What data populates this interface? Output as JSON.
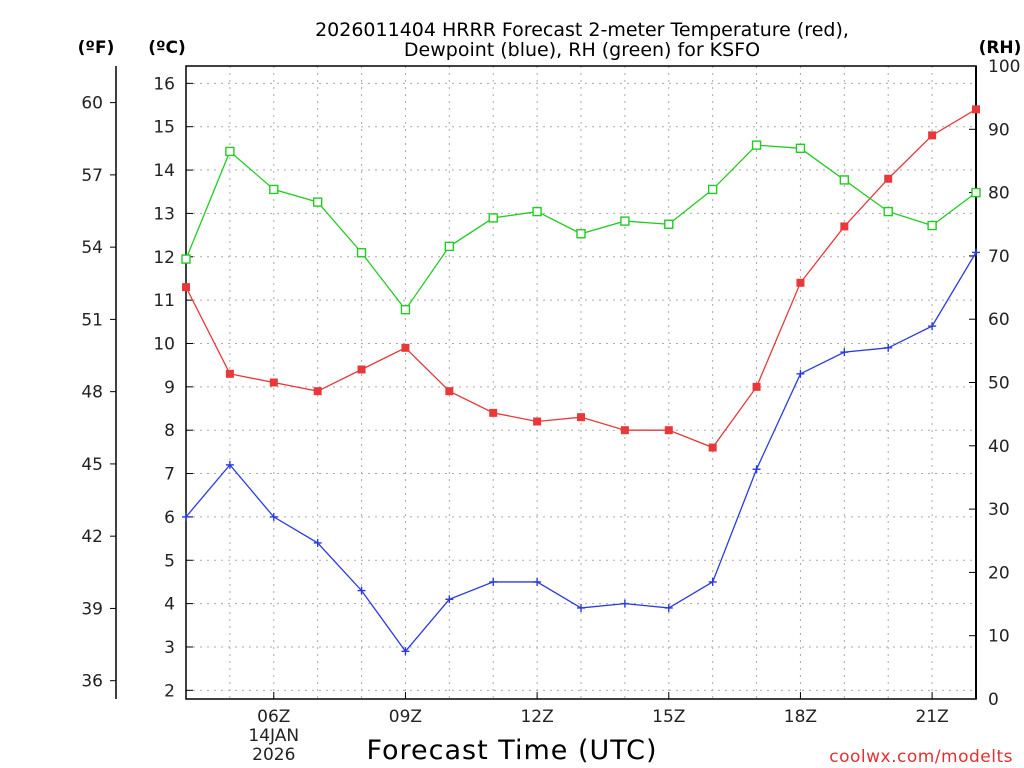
{
  "title": {
    "line1": "2026011404 HRRR Forecast 2-meter Temperature (red),",
    "line2": "Dewpoint (blue), RH (green) for KSFO"
  },
  "units": {
    "fahrenheit": "(ºF)",
    "celsius": "(ºC)",
    "rh": "(RH)"
  },
  "credit": "coolwx.com/modelts",
  "colors": {
    "temperature": "#e8383a",
    "dewpoint": "#2a3ae0",
    "rh": "#22cc22",
    "grid": "#aaaaaa"
  },
  "chart_data": {
    "type": "line",
    "title": "2026011404 HRRR Forecast 2-meter Temperature (red), Dewpoint (blue), RH (green) for KSFO",
    "xlabel": "Forecast Time (UTC)",
    "ylabel_left_f": "(ºF)",
    "ylabel_left_c": "(ºC)",
    "ylabel_right": "(RH)",
    "x": [
      "04Z",
      "05Z",
      "06Z",
      "07Z",
      "08Z",
      "09Z",
      "10Z",
      "11Z",
      "12Z",
      "13Z",
      "14Z",
      "15Z",
      "16Z",
      "17Z",
      "18Z",
      "19Z",
      "20Z",
      "21Z",
      "22Z"
    ],
    "x_ticks": [
      {
        "index": 2,
        "label": "06Z",
        "date_line1": "14JAN",
        "date_line2": "2026"
      },
      {
        "index": 5,
        "label": "09Z"
      },
      {
        "index": 8,
        "label": "12Z"
      },
      {
        "index": 11,
        "label": "15Z"
      },
      {
        "index": 14,
        "label": "18Z"
      },
      {
        "index": 17,
        "label": "21Z"
      }
    ],
    "celsius_range": [
      1.8,
      16.4
    ],
    "celsius_ticks": [
      2,
      3,
      4,
      5,
      6,
      7,
      8,
      9,
      10,
      11,
      12,
      13,
      14,
      15,
      16
    ],
    "fahrenheit_ticks": [
      36,
      39,
      42,
      45,
      48,
      51,
      54,
      57,
      60
    ],
    "rh_range": [
      0,
      100
    ],
    "rh_ticks": [
      0,
      10,
      20,
      30,
      40,
      50,
      60,
      70,
      80,
      90,
      100
    ],
    "grid": true,
    "series": [
      {
        "name": "Temperature",
        "axis": "celsius",
        "color": "#e8383a",
        "marker": "filled-square",
        "values": [
          11.3,
          9.3,
          9.1,
          8.9,
          9.4,
          9.9,
          8.9,
          8.4,
          8.2,
          8.3,
          8.0,
          8.0,
          7.6,
          9.0,
          11.4,
          12.7,
          13.8,
          14.8,
          15.4
        ]
      },
      {
        "name": "Dewpoint",
        "axis": "celsius",
        "color": "#2a3ae0",
        "marker": "plus",
        "values": [
          6.0,
          7.2,
          6.0,
          5.4,
          4.3,
          2.9,
          4.1,
          4.5,
          4.5,
          3.9,
          4.0,
          3.9,
          4.5,
          7.1,
          9.3,
          9.8,
          9.9,
          10.4,
          12.1
        ]
      },
      {
        "name": "RH",
        "axis": "rh",
        "color": "#22cc22",
        "marker": "open-square",
        "values": [
          69.5,
          86.5,
          80.5,
          78.5,
          70.5,
          61.5,
          71.5,
          76.0,
          77.0,
          73.5,
          75.5,
          75.0,
          80.5,
          87.5,
          87.0,
          82.0,
          77.0,
          74.8,
          80.0
        ]
      }
    ]
  }
}
